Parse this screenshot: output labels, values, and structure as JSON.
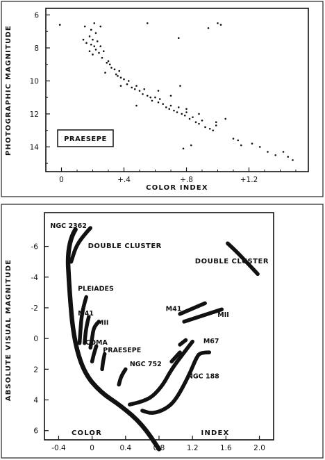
{
  "chart_data": [
    {
      "type": "scatter",
      "xlabel": "COLOR INDEX",
      "ylabel": "PHOTOGRAPHIC MAGNITUDE",
      "xlim": [
        -0.1,
        1.58
      ],
      "ylim": [
        15.5,
        5.6
      ],
      "y_inverted": true,
      "x_tick_labels": [
        "0",
        "+.4",
        "+.8",
        "+1.2"
      ],
      "x_ticks": [
        0,
        0.4,
        0.8,
        1.2
      ],
      "y_ticks": [
        6,
        8,
        10,
        12,
        14
      ],
      "legend_label": "PRAESEPE",
      "grid": false,
      "points": [
        [
          -0.01,
          6.6
        ],
        [
          0.15,
          6.7
        ],
        [
          0.19,
          6.9
        ],
        [
          0.21,
          6.5
        ],
        [
          0.22,
          7.1
        ],
        [
          0.25,
          6.7
        ],
        [
          0.14,
          7.5
        ],
        [
          0.16,
          7.7
        ],
        [
          0.18,
          7.3
        ],
        [
          0.19,
          7.8
        ],
        [
          0.2,
          7.5
        ],
        [
          0.21,
          7.9
        ],
        [
          0.22,
          8.1
        ],
        [
          0.23,
          7.6
        ],
        [
          0.24,
          8.3
        ],
        [
          0.25,
          7.9
        ],
        [
          0.26,
          8.6
        ],
        [
          0.18,
          8.2
        ],
        [
          0.2,
          8.4
        ],
        [
          0.27,
          8.2
        ],
        [
          0.29,
          8.9
        ],
        [
          0.31,
          9.0
        ],
        [
          0.32,
          9.2
        ],
        [
          0.34,
          9.3
        ],
        [
          0.35,
          9.6
        ],
        [
          0.37,
          9.4
        ],
        [
          0.38,
          9.8
        ],
        [
          0.4,
          9.9
        ],
        [
          0.42,
          10.2
        ],
        [
          0.43,
          10.0
        ],
        [
          0.45,
          10.4
        ],
        [
          0.47,
          10.5
        ],
        [
          0.48,
          10.3
        ],
        [
          0.5,
          10.6
        ],
        [
          0.52,
          10.8
        ],
        [
          0.53,
          10.5
        ],
        [
          0.55,
          10.9
        ],
        [
          0.57,
          11.0
        ],
        [
          0.58,
          11.2
        ],
        [
          0.6,
          11.0
        ],
        [
          0.62,
          11.3
        ],
        [
          0.63,
          11.1
        ],
        [
          0.65,
          11.4
        ],
        [
          0.67,
          11.6
        ],
        [
          0.69,
          11.7
        ],
        [
          0.7,
          11.5
        ],
        [
          0.72,
          11.8
        ],
        [
          0.74,
          11.9
        ],
        [
          0.75,
          11.6
        ],
        [
          0.77,
          12.0
        ],
        [
          0.79,
          12.1
        ],
        [
          0.8,
          11.9
        ],
        [
          0.82,
          12.3
        ],
        [
          0.84,
          12.2
        ],
        [
          0.86,
          12.5
        ],
        [
          0.88,
          12.6
        ],
        [
          0.9,
          12.4
        ],
        [
          0.92,
          12.8
        ],
        [
          0.95,
          12.9
        ],
        [
          0.97,
          13.0
        ],
        [
          0.99,
          12.7
        ],
        [
          0.62,
          10.6
        ],
        [
          0.7,
          10.9
        ],
        [
          0.76,
          10.3
        ],
        [
          0.8,
          11.7
        ],
        [
          0.88,
          12.0
        ],
        [
          0.99,
          12.5
        ],
        [
          1.05,
          12.3
        ],
        [
          1.1,
          13.5
        ],
        [
          1.13,
          13.6
        ],
        [
          1.15,
          13.9
        ],
        [
          1.22,
          13.8
        ],
        [
          1.27,
          14.0
        ],
        [
          1.32,
          14.3
        ],
        [
          1.37,
          14.5
        ],
        [
          1.42,
          14.3
        ],
        [
          1.45,
          14.6
        ],
        [
          1.48,
          14.8
        ],
        [
          0.55,
          6.5
        ],
        [
          0.75,
          7.4
        ],
        [
          0.94,
          6.8
        ],
        [
          1.0,
          6.5
        ],
        [
          1.02,
          6.6
        ],
        [
          0.83,
          13.9
        ],
        [
          0.78,
          14.1
        ],
        [
          0.48,
          11.5
        ],
        [
          0.38,
          10.3
        ],
        [
          0.3,
          8.8
        ],
        [
          0.28,
          9.5
        ],
        [
          0.36,
          9.7
        ]
      ]
    },
    {
      "type": "line",
      "xlabel": "COLOR",
      "xlabel2": "INDEX",
      "ylabel": "ABSOLUTE VISUAL MAGNITUDE",
      "xlim": [
        -0.57,
        2.17
      ],
      "ylim": [
        6.6,
        -8.2
      ],
      "y_inverted": true,
      "x_ticks": [
        -0.4,
        0.0,
        0.4,
        0.8,
        1.2,
        1.6,
        2.0
      ],
      "x_tick_labels": [
        "-0.4",
        "0",
        "0.4",
        "0.8",
        "1.2",
        "1.6",
        "2.0"
      ],
      "y_ticks": [
        -6,
        -4,
        -2,
        0,
        2,
        4,
        6
      ],
      "y_tick_labels": [
        "-6",
        "-4",
        "-2",
        "0",
        "2",
        "4",
        "6"
      ],
      "grid": false,
      "series": [
        {
          "name": "NGC 2362",
          "points": [
            [
              -0.2,
              -7.1
            ],
            [
              -0.3,
              -6.2
            ],
            [
              -0.27,
              -3.0
            ],
            [
              -0.22,
              0.0
            ],
            [
              -0.1,
              2.2
            ],
            [
              0.1,
              3.5
            ],
            [
              0.35,
              4.4
            ],
            [
              0.6,
              5.6
            ],
            [
              0.8,
              7.2
            ]
          ]
        },
        {
          "name": "DOUBLE CLUSTER",
          "points": [
            [
              -0.02,
              -7.2
            ],
            [
              -0.12,
              -6.6
            ],
            [
              -0.2,
              -5.9
            ],
            [
              -0.25,
              -5.0
            ]
          ]
        },
        {
          "name": "DOUBLE CLUSTER",
          "points": [
            [
              1.62,
              -6.2
            ],
            [
              1.72,
              -5.7
            ],
            [
              1.86,
              -4.9
            ],
            [
              1.98,
              -4.2
            ]
          ]
        },
        {
          "name": "PLEIADES",
          "points": [
            [
              -0.07,
              -2.7
            ],
            [
              -0.12,
              -1.8
            ],
            [
              -0.14,
              -0.5
            ],
            [
              -0.15,
              0.3
            ]
          ]
        },
        {
          "name": "M41",
          "points": [
            [
              -0.04,
              -1.4
            ],
            [
              -0.07,
              -0.8
            ],
            [
              -0.09,
              0.3
            ]
          ]
        },
        {
          "name": "MII",
          "points": [
            [
              0.08,
              -1.1
            ],
            [
              0.02,
              -0.8
            ],
            [
              0.0,
              0.0
            ],
            [
              -0.02,
              0.6
            ]
          ]
        },
        {
          "name": "COMA",
          "points": [
            [
              0.05,
              0.5
            ],
            [
              0.02,
              1.0
            ],
            [
              0.0,
              1.5
            ]
          ]
        },
        {
          "name": "PRAESEPE",
          "points": [
            [
              0.15,
              1.0
            ],
            [
              0.13,
              1.5
            ],
            [
              0.12,
              2.0
            ]
          ]
        },
        {
          "name": "NGC 752",
          "points": [
            [
              0.4,
              2.0
            ],
            [
              0.35,
              2.4
            ],
            [
              0.32,
              3.0
            ]
          ]
        },
        {
          "name": "M41",
          "points": [
            [
              1.05,
              -1.6
            ],
            [
              1.35,
              -2.3
            ]
          ]
        },
        {
          "name": "MII",
          "points": [
            [
              1.1,
              -1.1
            ],
            [
              1.55,
              -1.9
            ]
          ]
        },
        {
          "name": "M67",
          "points": [
            [
              1.2,
              0.2
            ],
            [
              1.1,
              0.9
            ],
            [
              0.95,
              2.0
            ],
            [
              0.85,
              3.0
            ],
            [
              0.72,
              3.8
            ],
            [
              0.6,
              4.1
            ],
            [
              0.45,
              4.3
            ]
          ]
        },
        {
          "name": "NGC 188",
          "points": [
            [
              1.4,
              0.9
            ],
            [
              1.3,
              0.9
            ],
            [
              1.25,
              1.2
            ],
            [
              1.15,
              2.5
            ],
            [
              1.0,
              4.0
            ],
            [
              0.88,
              4.6
            ],
            [
              0.72,
              4.9
            ],
            [
              0.6,
              4.7
            ]
          ]
        },
        {
          "name": "",
          "points": [
            [
              0.95,
              1.5
            ],
            [
              1.05,
              0.9
            ]
          ]
        },
        {
          "name": "",
          "points": [
            [
              1.05,
              0.4
            ],
            [
              1.12,
              0.1
            ]
          ]
        }
      ],
      "labels": [
        {
          "text": "NGC 2362",
          "x": -0.5,
          "y": -7.2
        },
        {
          "text": "DOUBLE CLUSTER",
          "x": -0.05,
          "y": -5.9
        },
        {
          "text": "DOUBLE CLUSTER",
          "x": 1.23,
          "y": -4.9
        },
        {
          "text": "PLEIADES",
          "x": -0.17,
          "y": -3.1
        },
        {
          "text": "M41",
          "x": -0.17,
          "y": -1.5
        },
        {
          "text": "MII",
          "x": 0.06,
          "y": -0.9
        },
        {
          "text": "COMA",
          "x": -0.08,
          "y": 0.4
        },
        {
          "text": "PRAESEPE",
          "x": 0.13,
          "y": 0.9
        },
        {
          "text": "NGC 752",
          "x": 0.45,
          "y": 1.8
        },
        {
          "text": "M41",
          "x": 0.88,
          "y": -1.8
        },
        {
          "text": "MII",
          "x": 1.5,
          "y": -1.4
        },
        {
          "text": "M67",
          "x": 1.33,
          "y": 0.3
        },
        {
          "text": "NGC 188",
          "x": 1.14,
          "y": 2.6
        }
      ]
    }
  ]
}
